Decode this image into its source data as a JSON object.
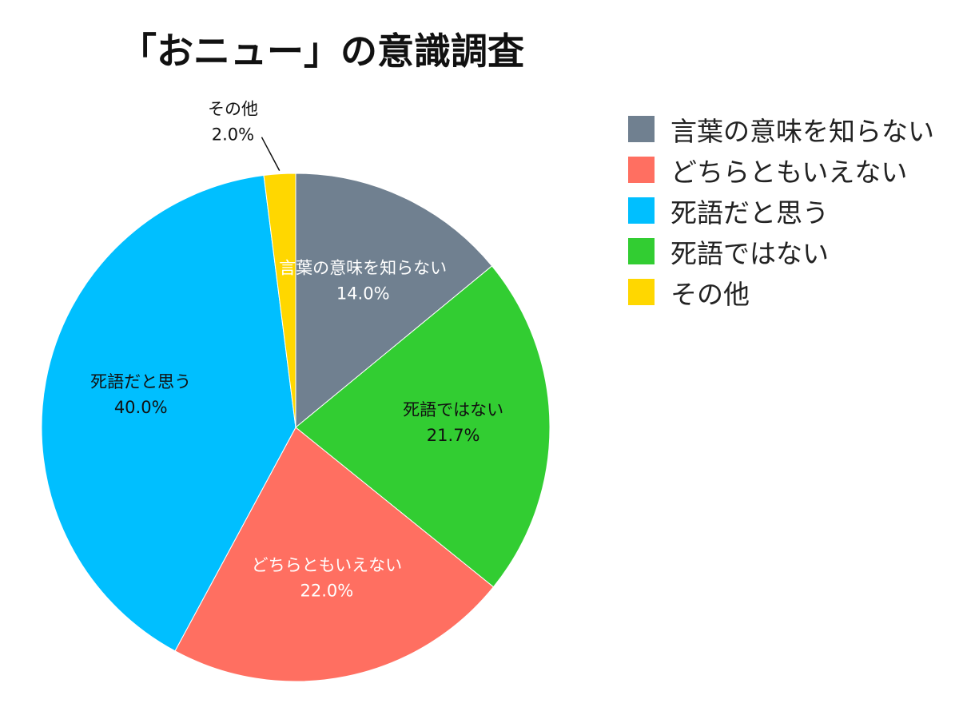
{
  "chart_data": {
    "type": "pie",
    "title": "「おニュー」の意識調査",
    "legend_position": "right",
    "slices": [
      {
        "label": "言葉の意味を知らない",
        "value": 14.0,
        "display": "14.0%",
        "color": "#708090",
        "text_color": "#ffffff"
      },
      {
        "label": "死語ではない",
        "value": 21.7,
        "display": "21.7%",
        "color": "#32cd32",
        "text_color": "#111111"
      },
      {
        "label": "どちらともいえない",
        "value": 22.0,
        "display": "22.0%",
        "color": "#ff6f61",
        "text_color": "#ffffff"
      },
      {
        "label": "死語だと思う",
        "value": 40.0,
        "display": "40.0%",
        "color": "#00bfff",
        "text_color": "#111111"
      },
      {
        "label": "その他",
        "value": 2.0,
        "display": "2.0%",
        "color": "#ffd700",
        "text_color": "#111111",
        "outside_label": true
      }
    ],
    "legend": [
      {
        "label": "言葉の意味を知らない",
        "color": "#708090"
      },
      {
        "label": "どちらともいえない",
        "color": "#ff6f61"
      },
      {
        "label": "死語だと思う",
        "color": "#00bfff"
      },
      {
        "label": "死語ではない",
        "color": "#32cd32"
      },
      {
        "label": "その他",
        "color": "#ffd700"
      }
    ]
  }
}
